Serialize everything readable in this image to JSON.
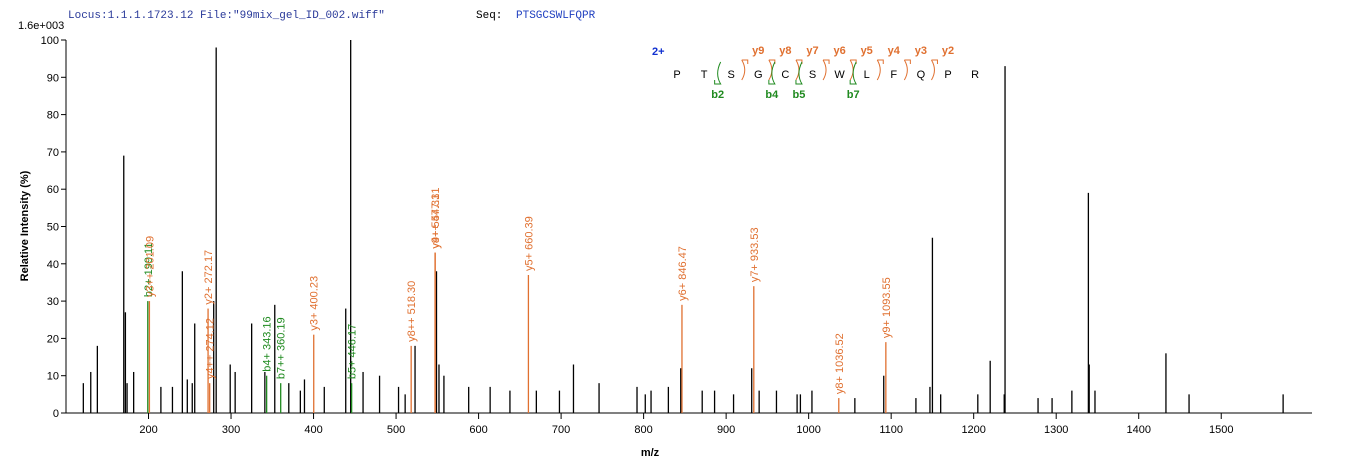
{
  "chart_data": {
    "type": "spectrum",
    "header": {
      "locus": "Locus:1.1.1.1723.12 File:\"99mix_gel_ID_002.wiff\"",
      "seq_label": "Seq:",
      "seq": "PTSGCSWLFQPR"
    },
    "scale_label": "1.6e+003",
    "x_label": "m/z",
    "y_label": "Relative  Intensity (%)",
    "xlim": [
      100,
      1610
    ],
    "xticks": [
      200,
      300,
      400,
      500,
      600,
      700,
      800,
      900,
      1000,
      1100,
      1200,
      1300,
      1400,
      1500
    ],
    "ylim": [
      0,
      100
    ],
    "yticks": [
      0,
      10,
      20,
      30,
      40,
      50,
      60,
      70,
      80,
      90,
      100
    ],
    "peak_color": "#000000",
    "peaks": {
      "x": [
        121,
        130,
        138,
        170,
        172,
        174,
        182,
        215,
        229,
        241,
        247,
        253,
        256,
        279,
        282,
        299,
        305,
        325,
        341,
        353,
        370,
        384,
        389,
        413,
        439,
        445,
        460,
        480,
        503,
        511,
        523,
        549,
        552,
        558,
        588,
        614,
        638,
        670,
        698,
        715,
        746,
        792,
        802,
        809,
        830,
        845,
        871,
        886,
        909,
        931,
        940,
        961,
        986,
        990,
        1004,
        1056,
        1091,
        1130,
        1147,
        1150,
        1160,
        1205,
        1220,
        1237,
        1238,
        1278,
        1295,
        1319,
        1339,
        1340,
        1347,
        1433,
        1461,
        1575
      ],
      "values": [
        8,
        11,
        18,
        69,
        27,
        8,
        11,
        7,
        7,
        38,
        9,
        8,
        24,
        30,
        98,
        13,
        11,
        24,
        11,
        29,
        8,
        6,
        9,
        7,
        28,
        100,
        11,
        10,
        7,
        5,
        18,
        38,
        13,
        10,
        7,
        7,
        6,
        6,
        6,
        13,
        8,
        7,
        5,
        6,
        7,
        12,
        6,
        6,
        5,
        12,
        6,
        6,
        5,
        5,
        6,
        4,
        10,
        4,
        7,
        47,
        5,
        5,
        14,
        5,
        93,
        4,
        4,
        6,
        59,
        13,
        6,
        16,
        5,
        5
      ]
    },
    "annotations": [
      {
        "label": "b2+ 199.11",
        "x": 199.11,
        "value": 30,
        "color": "#1f8a1f"
      },
      {
        "label": "y3++ 201.09",
        "x": 201.09,
        "value": 30,
        "color": "#e07030"
      },
      {
        "label": "y2+ 272.17",
        "x": 272.17,
        "value": 28,
        "color": "#e07030"
      },
      {
        "label": "y4++ 274.12",
        "x": 274.12,
        "value": 8,
        "color": "#e07030"
      },
      {
        "label": "b4+ 343.16",
        "x": 343.16,
        "value": 10,
        "color": "#1f8a1f"
      },
      {
        "label": "b7++ 360.19",
        "x": 360.19,
        "value": 8,
        "color": "#1f8a1f"
      },
      {
        "label": "y3+ 400.23",
        "x": 400.23,
        "value": 21,
        "color": "#e07030"
      },
      {
        "label": "b5+ 446.17",
        "x": 446.17,
        "value": 8,
        "color": "#1f8a1f"
      },
      {
        "label": "y8++ 518.30",
        "x": 518.3,
        "value": 18,
        "color": "#e07030"
      },
      {
        "label": "y4+ 547.31",
        "x": 547.31,
        "value": 43,
        "color": "#e07030"
      },
      {
        "label": "y9++ 547.31",
        "x": 547.31,
        "value": 43,
        "color": "#e07030"
      },
      {
        "label": "y5+ 660.39",
        "x": 660.39,
        "value": 37,
        "color": "#e07030"
      },
      {
        "label": "y6+ 846.47",
        "x": 846.47,
        "value": 29,
        "color": "#e07030"
      },
      {
        "label": "y7+ 933.53",
        "x": 933.53,
        "value": 34,
        "color": "#e07030"
      },
      {
        "label": "y8+ 1036.52",
        "x": 1036.52,
        "value": 4,
        "color": "#e07030"
      },
      {
        "label": "y9+ 1093.55",
        "x": 1093.55,
        "value": 19,
        "color": "#e07030"
      }
    ],
    "peptide": {
      "charge": "2+",
      "residues": [
        "P",
        "T",
        "S",
        "G",
        "C",
        "S",
        "W",
        "L",
        "F",
        "Q",
        "P",
        "R"
      ],
      "y_ions": [
        "y9",
        "y8",
        "y7",
        "y6",
        "y5",
        "y4",
        "y3",
        "y2"
      ],
      "b_ions": [
        "b2",
        "b4",
        "b5",
        "b7"
      ]
    }
  }
}
